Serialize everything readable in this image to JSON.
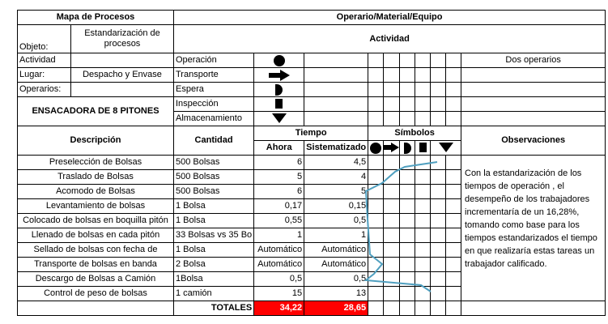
{
  "header": {
    "title_left": "Mapa de Procesos",
    "title_right": "Operario/Material/Equipo",
    "objeto_label": "Objeto:",
    "objeto_value": "Estandarización de procesos",
    "actividad_header": "Actividad",
    "actividad_label": "Actividad",
    "actividad_value": "Dos operarios",
    "lugar_label": "Lugar:",
    "lugar_value": "Despacho y Envase",
    "operarios_label": "Operarios:",
    "machine": "ENSACADORA DE 8 PITONES"
  },
  "legend": [
    {
      "label": "Operación",
      "icon": "circle-icon"
    },
    {
      "label": "Transporte",
      "icon": "arrow-right-icon"
    },
    {
      "label": "Espera",
      "icon": "d-shape-icon"
    },
    {
      "label": "Inspección",
      "icon": "square-icon"
    },
    {
      "label": "Almacenamiento",
      "icon": "triangle-down-icon"
    }
  ],
  "columns": {
    "descripcion": "Descripción",
    "cantidad": "Cantidad",
    "tiempo": "Tiempo",
    "ahora": "Ahora",
    "sistematizado": "Sistematizado",
    "simbolos": "Símbolos",
    "observaciones": "Observaciones"
  },
  "rows": [
    {
      "desc": "Preselección de Bolsas",
      "qty": "500 Bolsas",
      "ahora": "6",
      "sist": "4,5"
    },
    {
      "desc": "Traslado de Bolsas",
      "qty": "500 Bolsas",
      "ahora": "5",
      "sist": "4"
    },
    {
      "desc": "Acomodo de Bolsas",
      "qty": "500 Bolsas",
      "ahora": "6",
      "sist": "5"
    },
    {
      "desc": "Levantamiento de bolsas",
      "qty": "1 Bolsa",
      "ahora": "0,17",
      "sist": "0,15"
    },
    {
      "desc": "Colocado de bolsas en boquilla pitón",
      "qty": "1 Bolsa",
      "ahora": "0,55",
      "sist": "0,5"
    },
    {
      "desc": "Llenado de bolsas en cada pitón",
      "qty": "33 Bolsas vs 35 Bo",
      "ahora": "1",
      "sist": "1"
    },
    {
      "desc": "Sellado de bolsas con fecha de",
      "qty": "1 Bolsa",
      "ahora": "Automático",
      "sist": "Automático"
    },
    {
      "desc": "Transporte de bolsas en banda",
      "qty": "2 Bolsa",
      "ahora": "Automático",
      "sist": "Automático"
    },
    {
      "desc": "Descargo de Bolsas a Camión",
      "qty": "1Bolsa",
      "ahora": "0,5",
      "sist": "0,5"
    },
    {
      "desc": "Control de peso de bolsas",
      "qty": "1 camión",
      "ahora": "15",
      "sist": "13"
    }
  ],
  "totals": {
    "label": "TOTALES",
    "ahora": "34,22",
    "sist": "28,65"
  },
  "observation": "Con la estandarización de los tiempos de operación , el desempeño de los trabajadores incrementaría de un 16,28%, tomando como base para los tiempos estandarizados el tiempo en que realizaría estas tareas un trabajador calificado.",
  "colors": {
    "flow_line": "#4f9fbf",
    "totals_fill": "#ff0000"
  }
}
